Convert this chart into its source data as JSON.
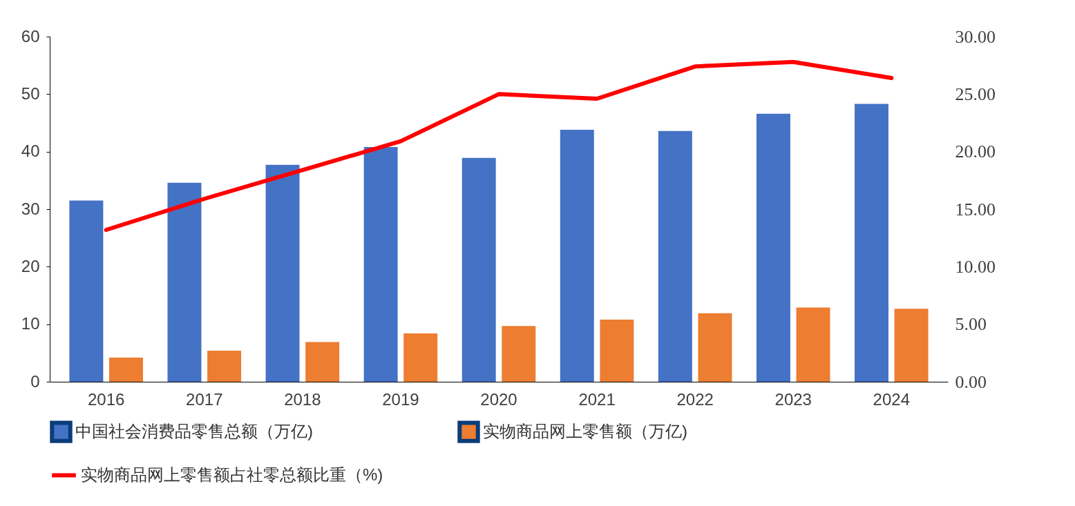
{
  "chart_data": {
    "type": "bar",
    "categories": [
      "2016",
      "2017",
      "2018",
      "2019",
      "2020",
      "2021",
      "2022",
      "2023",
      "2024"
    ],
    "series": [
      {
        "name": "中国社会消费品零售总额（万亿)",
        "color": "#4472c4",
        "values": [
          31.5,
          34.6,
          37.7,
          40.8,
          38.9,
          43.8,
          43.6,
          46.6,
          48.3
        ]
      },
      {
        "name": "实物商品网上零售额（万亿)",
        "color": "#ed7d31",
        "values": [
          4.2,
          5.4,
          6.9,
          8.4,
          9.7,
          10.8,
          11.9,
          12.9,
          12.7
        ]
      },
      {
        "name": "实物商品网上零售额占社零总额比重（%)",
        "type": "line",
        "axis": "y2",
        "color": "#ff0000",
        "values": [
          13.2,
          15.9,
          18.4,
          20.9,
          25.0,
          24.6,
          27.4,
          27.8,
          26.4
        ]
      }
    ],
    "ylim": [
      0,
      60
    ],
    "yticks": [
      0,
      10,
      20,
      30,
      40,
      50,
      60
    ],
    "y2lim": [
      0,
      30
    ],
    "y2ticks": [
      {
        "value": 0,
        "label": "0.00"
      },
      {
        "value": 5,
        "label": "5.00"
      },
      {
        "value": 10,
        "label": "10.00"
      },
      {
        "value": 15,
        "label": "15.00"
      },
      {
        "value": 20,
        "label": "20.00"
      },
      {
        "value": 25,
        "label": "25.00"
      },
      {
        "value": 30,
        "label": "30.00"
      }
    ],
    "grid": false,
    "legend": "bottom",
    "marker": "none"
  }
}
